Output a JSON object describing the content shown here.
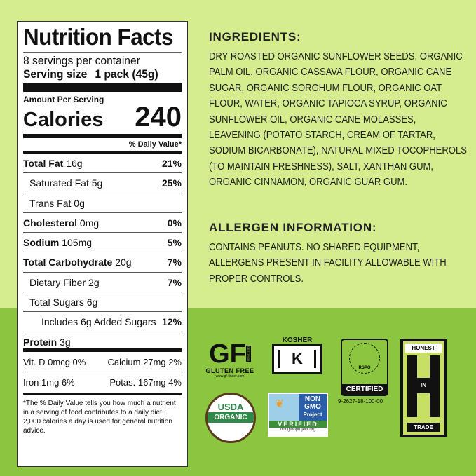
{
  "nutrition": {
    "title": "Nutrition Facts",
    "servings": "8 servings per container",
    "serving_size_label": "Serving size",
    "serving_size": "1 pack (45g)",
    "amount_per_serving": "Amount Per Serving",
    "calories_label": "Calories",
    "calories": "240",
    "dv_header": "% Daily Value*",
    "rows": [
      {
        "label": "Total Fat",
        "amount": "16g",
        "dv": "21%"
      },
      {
        "label": "Saturated Fat",
        "amount": "5g",
        "dv": "25%"
      },
      {
        "label": "Trans Fat",
        "amount": "0g",
        "dv": ""
      },
      {
        "label": "Cholesterol",
        "amount": "0mg",
        "dv": "0%"
      },
      {
        "label": "Sodium",
        "amount": "105mg",
        "dv": "5%"
      },
      {
        "label": "Total Carbohydrate",
        "amount": "20g",
        "dv": "7%"
      },
      {
        "label": "Dietary Fiber",
        "amount": "2g",
        "dv": "7%"
      },
      {
        "label": "Total Sugars",
        "amount": "6g",
        "dv": ""
      },
      {
        "label": "Includes 6g Added Sugars",
        "amount": "",
        "dv": "12%"
      },
      {
        "label": "Protein",
        "amount": "3g",
        "dv": ""
      }
    ],
    "vitamins": [
      [
        "Vit. D 0mcg 0%",
        "Calcium 27mg 2%"
      ],
      [
        "Iron 1mg 6%",
        "Potas. 167mg 4%"
      ]
    ],
    "footnote": "*The % Daily Value tells you how much a nutrient in a serving of food contributes to a daily diet. 2,000 calories a day is used for general nutrition advice."
  },
  "ingredients": {
    "heading": "INGREDIENTS:",
    "text": "DRY ROASTED ORGANIC SUNFLOWER SEEDS, ORGANIC PALM OIL, ORGANIC CASSAVA FLOUR, ORGANIC CANE SUGAR, ORGANIC SORGHUM FLOUR, ORGANIC OAT FLOUR, WATER, ORGANIC TAPIOCA SYRUP, ORGANIC SUNFLOWER OIL, ORGANIC CANE MOLASSES, LEAVENING (POTATO STARCH, CREAM OF TARTAR, SODIUM BICARBONATE), NATURAL MIXED TOCOPHEROLS (TO MAINTAIN FRESHNESS), SALT, XANTHAN GUM, ORGANIC CINNAMON, ORGANIC GUAR GUM."
  },
  "allergen": {
    "heading": "ALLERGEN INFORMATION:",
    "text": "CONTAINS PEANUTS. NO SHARED EQUIPMENT, ALLERGENS PRESENT IN FACILITY ALLOWABLE WITH PROPER CONTROLS."
  },
  "logos": {
    "gf": {
      "mark": "GF",
      "certified": "CERTIFIED",
      "label": "GLUTEN FREE",
      "url": "www.gf-finder.com"
    },
    "kosher": {
      "label": "KOSHER",
      "mark": "K"
    },
    "rspo": {
      "ring": "CERTIFIED SUSTAINABLE PALM OIL",
      "name": "RSPO",
      "label": "CERTIFIED",
      "number": "9-2627-18-100-00"
    },
    "honest": {
      "top": "HONEST",
      "mid": "IN",
      "bottom": "TRADE"
    },
    "usda": {
      "top": "USDA",
      "bottom": "ORGANIC"
    },
    "nongmo": {
      "l1": "NON",
      "l2": "GMO",
      "l3": "Project",
      "verified": "VERIFIED",
      "url": "nongmoproject.org"
    }
  },
  "colors": {
    "top_bg": "#d5ec8f",
    "bottom_bg": "#8cc540"
  }
}
